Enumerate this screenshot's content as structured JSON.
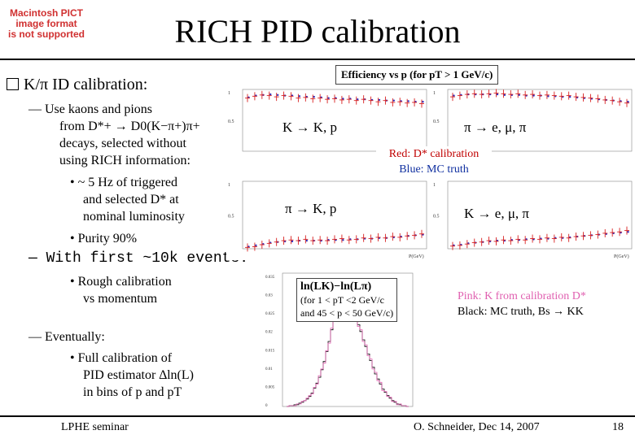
{
  "pict_notice": [
    "Macintosh PICT",
    "image format",
    "is not supported"
  ],
  "title": "RICH PID calibration",
  "bullet_main": "K/π ID calibration:",
  "sub1_lines": [
    "— Use kaons and pions",
    "from D*+ → D0(K−π+)π+",
    "decays, selected without",
    "using RICH information:"
  ],
  "sub1_items": [
    {
      "lines": [
        "• ~ 5 Hz of triggered",
        "and selected D* at",
        "nominal luminosity"
      ]
    },
    {
      "lines": [
        "• Purity 90%"
      ]
    }
  ],
  "sub2_line": "— With first ~10k events:",
  "sub2_item": [
    "• Rough calibration",
    "vs momentum"
  ],
  "sub3_line": "— Eventually:",
  "sub3_item": [
    "• Full calibration of",
    "PID estimator ∆ln(L)",
    "in bins of p and pT"
  ],
  "eff_title": "Efficiency vs p (for pT > 1 GeV/c)",
  "eff_labels": {
    "k_to_kp": "K → K, p",
    "pi_to_emupi": "π → e, μ, π",
    "pi_to_kp": "π → K, p",
    "k_to_emupi": "K → e, μ, π"
  },
  "legend_eff": [
    "Red:  D* calibration",
    "Blue: MC truth"
  ],
  "axis_x_label": "P(GeV)",
  "hist_box": [
    "ln(LK)−ln(Lπ)",
    "(for 1 < pT <2 GeV/c",
    "and 45 < p < 50 GeV/c)"
  ],
  "legend_hist": [
    "Pink: K from calibration D*",
    "Black: MC truth, Bs → KK"
  ],
  "footer": {
    "left": "LPHE seminar",
    "center": "O. Schneider, Dec 14, 2007",
    "page": "18"
  },
  "colors": {
    "calib": "#d82020",
    "mc": "#3030c0",
    "pink": "#e060b0",
    "black": "#000000",
    "legend_red": "#c00000",
    "legend_blue": "#1030a0"
  },
  "chart_data": [
    {
      "type": "scatter",
      "title": "",
      "ylim": [
        0,
        1
      ],
      "series": [
        {
          "values": [
            0.86,
            0.89,
            0.91,
            0.9,
            0.88,
            0.9,
            0.89,
            0.86,
            0.87,
            0.85,
            0.86,
            0.84,
            0.85,
            0.83,
            0.84,
            0.82,
            0.84,
            0.82,
            0.8,
            0.82,
            0.79,
            0.8,
            0.78,
            0.79,
            0.77
          ]
        },
        {
          "values": [
            0.87,
            0.9,
            0.91,
            0.92,
            0.91,
            0.9,
            0.9,
            0.89,
            0.88,
            0.88,
            0.87,
            0.86,
            0.86,
            0.85,
            0.85,
            0.84,
            0.84,
            0.83,
            0.83,
            0.82,
            0.82,
            0.81,
            0.81,
            0.8,
            0.8
          ]
        }
      ]
    },
    {
      "type": "scatter",
      "title": "",
      "ylim": [
        0,
        1
      ],
      "series": [
        {
          "values": [
            0.88,
            0.9,
            0.92,
            0.93,
            0.92,
            0.93,
            0.94,
            0.93,
            0.92,
            0.93,
            0.91,
            0.92,
            0.9,
            0.91,
            0.9,
            0.89,
            0.9,
            0.88,
            0.87,
            0.86,
            0.85,
            0.83,
            0.82,
            0.8,
            0.78
          ]
        },
        {
          "values": [
            0.9,
            0.91,
            0.92,
            0.92,
            0.92,
            0.92,
            0.92,
            0.91,
            0.91,
            0.91,
            0.9,
            0.9,
            0.9,
            0.89,
            0.89,
            0.88,
            0.88,
            0.87,
            0.86,
            0.85,
            0.84,
            0.83,
            0.82,
            0.81,
            0.8
          ]
        }
      ]
    },
    {
      "type": "scatter",
      "title": "",
      "ylim": [
        0,
        1
      ],
      "series": [
        {
          "values": [
            0.02,
            0.03,
            0.06,
            0.08,
            0.1,
            0.12,
            0.13,
            0.12,
            0.14,
            0.12,
            0.13,
            0.12,
            0.14,
            0.15,
            0.13,
            0.14,
            0.16,
            0.15,
            0.17,
            0.16,
            0.18,
            0.17,
            0.19,
            0.2,
            0.22
          ]
        },
        {
          "values": [
            0.03,
            0.05,
            0.07,
            0.09,
            0.1,
            0.11,
            0.11,
            0.12,
            0.12,
            0.12,
            0.12,
            0.13,
            0.13,
            0.13,
            0.14,
            0.14,
            0.15,
            0.15,
            0.16,
            0.16,
            0.17,
            0.18,
            0.19,
            0.2,
            0.21
          ]
        }
      ]
    },
    {
      "type": "scatter",
      "title": "",
      "ylim": [
        0,
        1
      ],
      "series": [
        {
          "values": [
            0.04,
            0.05,
            0.07,
            0.09,
            0.1,
            0.12,
            0.11,
            0.13,
            0.12,
            0.14,
            0.13,
            0.15,
            0.14,
            0.16,
            0.15,
            0.17,
            0.16,
            0.18,
            0.19,
            0.2,
            0.21,
            0.23,
            0.24,
            0.25,
            0.27
          ]
        },
        {
          "values": [
            0.05,
            0.06,
            0.08,
            0.09,
            0.1,
            0.11,
            0.12,
            0.12,
            0.13,
            0.13,
            0.14,
            0.14,
            0.15,
            0.15,
            0.16,
            0.16,
            0.17,
            0.18,
            0.19,
            0.2,
            0.21,
            0.22,
            0.23,
            0.24,
            0.25
          ]
        }
      ]
    },
    {
      "type": "bar",
      "title": "",
      "xlabel": "ln(LK)−ln(Lπ)",
      "series": [
        {
          "values": [
            0,
            1,
            1,
            2,
            2,
            4,
            5,
            7,
            9,
            12,
            16,
            22,
            28,
            35,
            44,
            54,
            66,
            78,
            92,
            104,
            118,
            124,
            132,
            128,
            134,
            121,
            126,
            116,
            109,
            98,
            90,
            80,
            72,
            63,
            55,
            47,
            39,
            33,
            27,
            21,
            17,
            13,
            10,
            7,
            5,
            3,
            2,
            1,
            1,
            0
          ]
        },
        {
          "values": [
            0,
            1,
            1,
            1,
            3,
            3,
            6,
            7,
            10,
            13,
            15,
            23,
            27,
            37,
            45,
            52,
            67,
            76,
            94,
            102,
            120,
            122,
            135,
            126,
            137,
            118,
            128,
            114,
            111,
            96,
            92,
            78,
            74,
            61,
            57,
            45,
            41,
            31,
            29,
            19,
            18,
            12,
            11,
            6,
            6,
            2,
            3,
            1,
            1,
            0
          ]
        }
      ]
    }
  ]
}
